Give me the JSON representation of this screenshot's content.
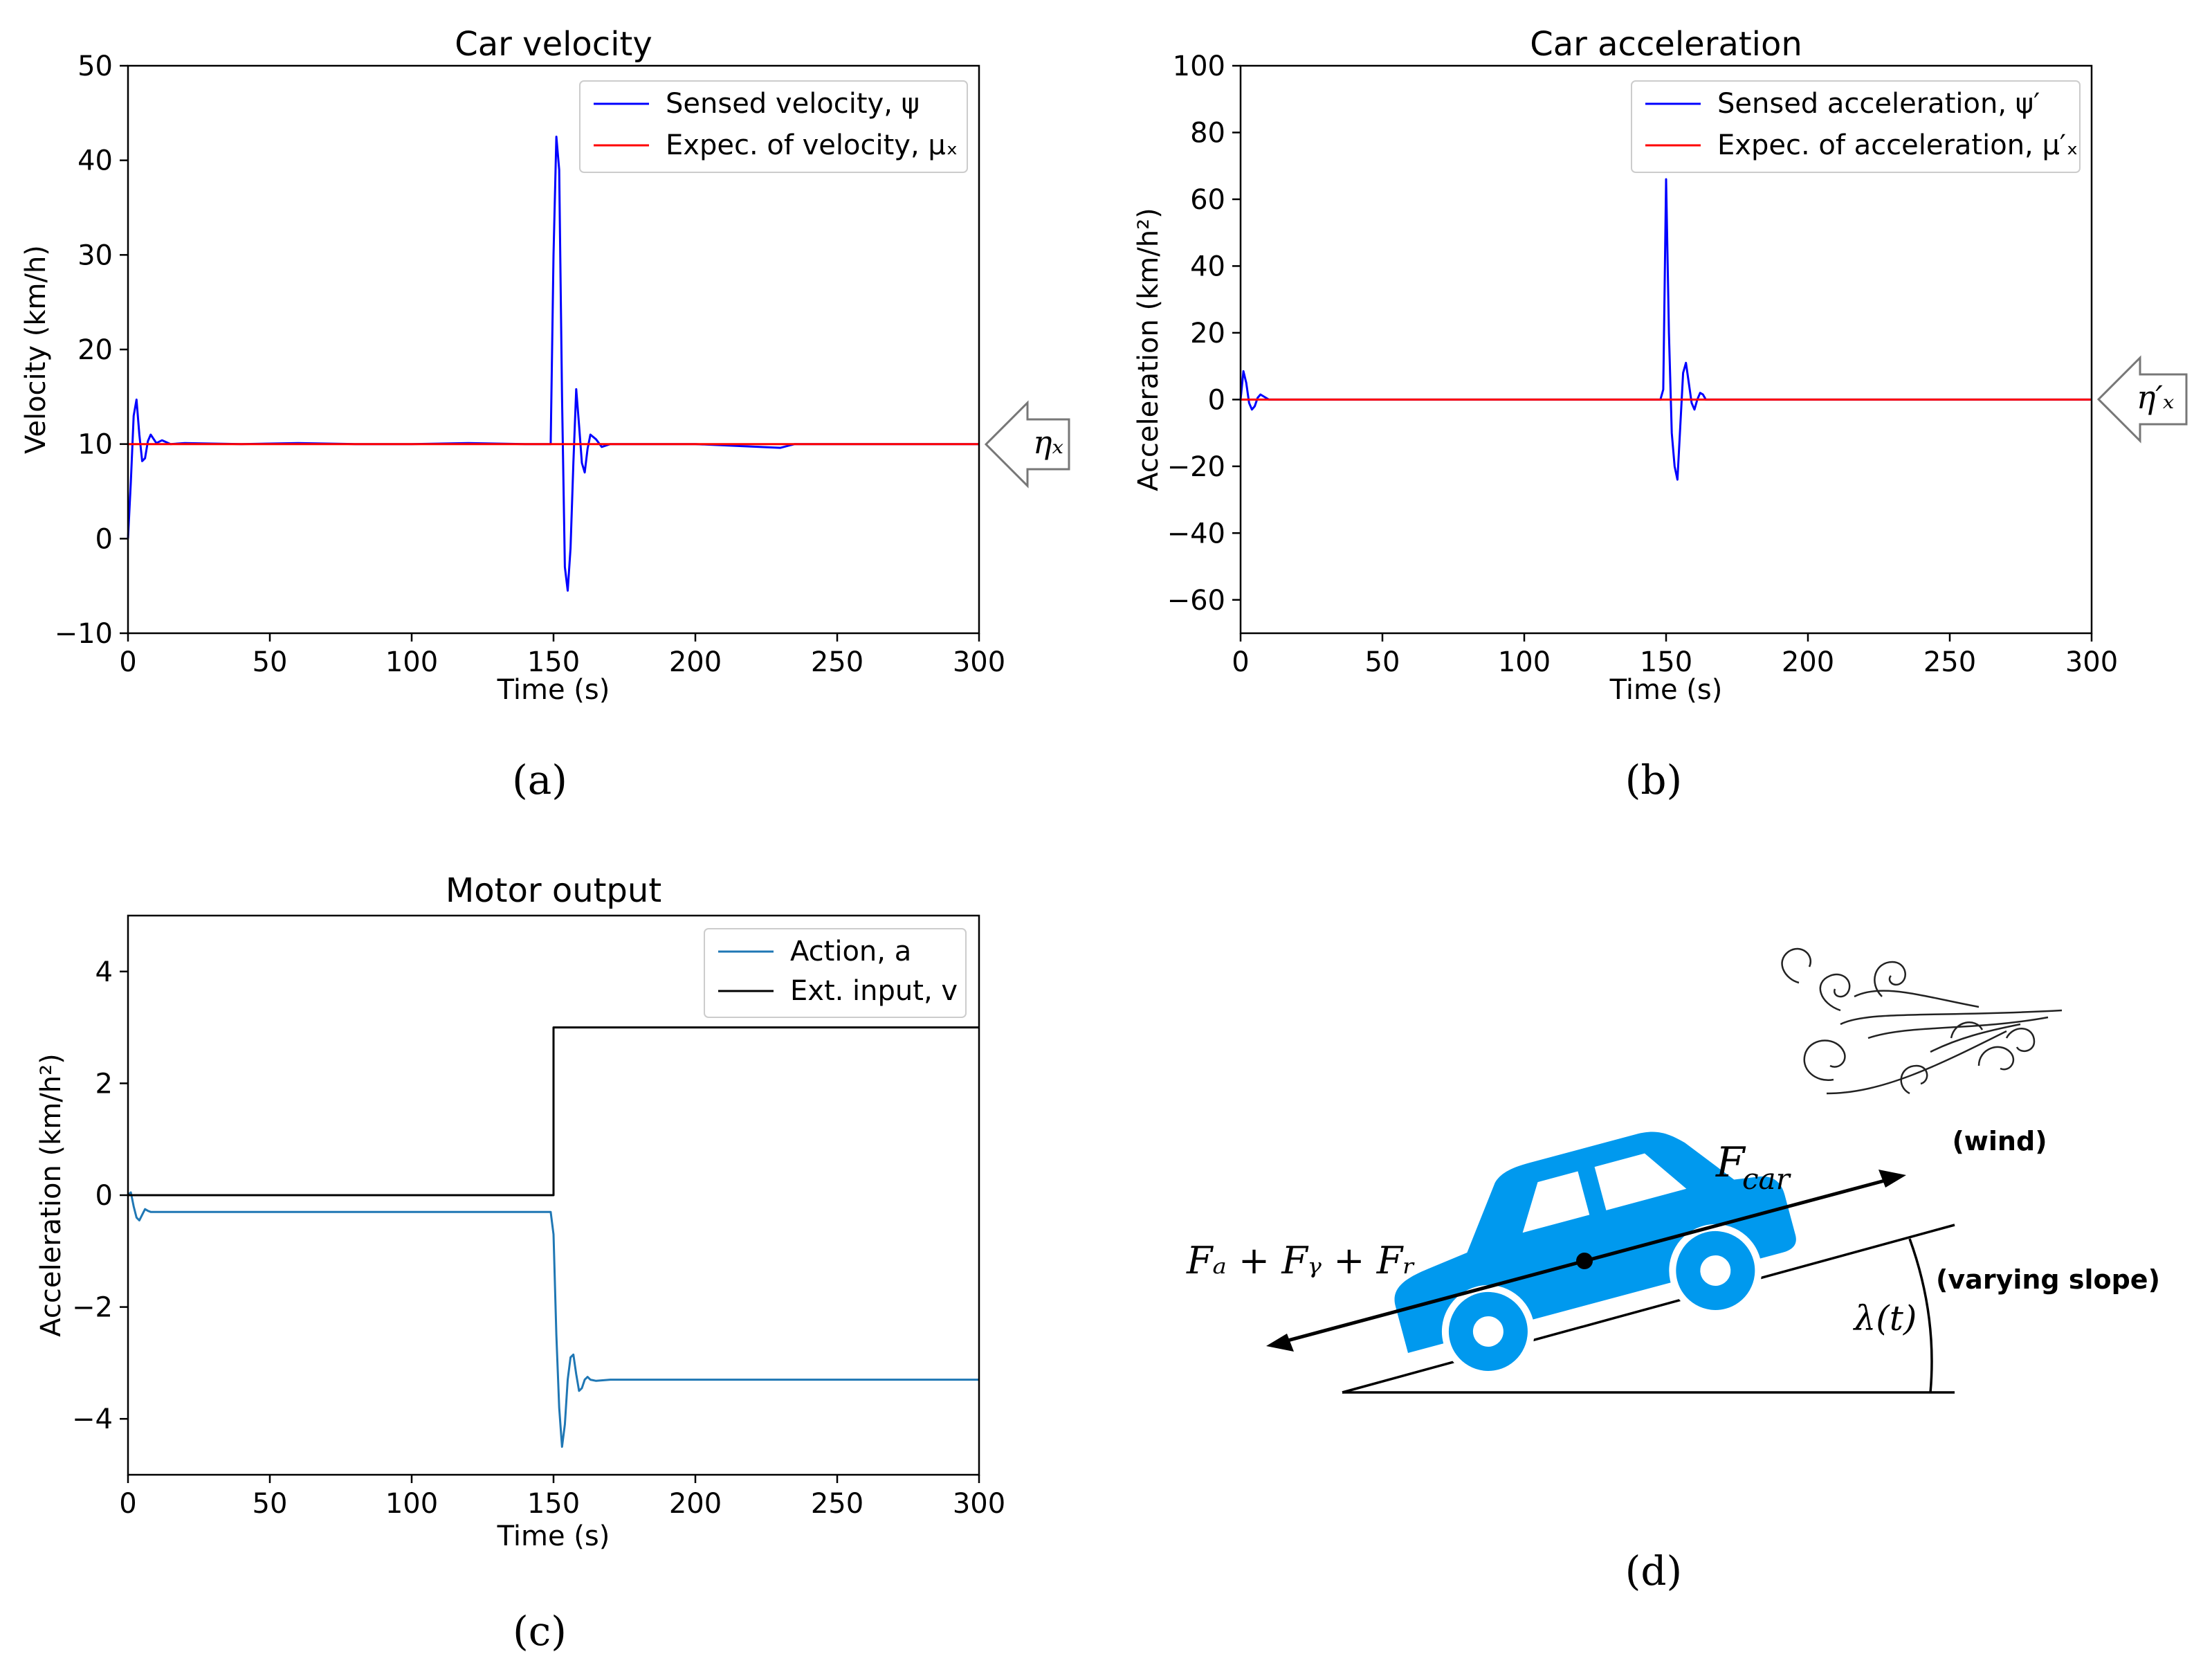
{
  "chart_data": [
    {
      "id": "a",
      "type": "line",
      "title": "Car velocity",
      "xlabel": "Time (s)",
      "ylabel": "Velocity (km/h)",
      "xlim": [
        0,
        300
      ],
      "ylim": [
        -10,
        50
      ],
      "xticks": [
        0,
        50,
        100,
        150,
        200,
        250,
        300
      ],
      "yticks": [
        -10,
        0,
        10,
        20,
        30,
        40,
        50
      ],
      "xtick_labels": [
        "0",
        "50",
        "100",
        "150",
        "200",
        "250",
        "300"
      ],
      "ytick_labels": [
        "−10",
        "0",
        "10",
        "20",
        "30",
        "40",
        "50"
      ],
      "legend": "top-right",
      "series": [
        {
          "name": "Sensed velocity, ψ",
          "color": "#0000ff",
          "x": [
            0,
            1,
            2,
            3,
            4,
            5,
            6,
            7,
            8,
            10,
            12,
            15,
            20,
            40,
            60,
            80,
            100,
            120,
            140,
            149,
            150,
            151,
            152,
            153,
            154,
            155,
            156,
            157,
            158,
            159,
            160,
            161,
            162,
            163,
            165,
            167,
            170,
            180,
            200,
            230,
            235,
            260,
            300
          ],
          "y": [
            0,
            6,
            13,
            14.7,
            11,
            8.2,
            8.5,
            10.3,
            11,
            10.1,
            10.4,
            10,
            10.1,
            10,
            10.1,
            10,
            10,
            10.1,
            10,
            10,
            30,
            42.5,
            39,
            15,
            -3,
            -5.5,
            -1,
            8,
            15.8,
            12,
            8,
            7,
            9.5,
            11,
            10.5,
            9.7,
            10,
            10,
            10,
            9.6,
            10,
            10,
            10
          ]
        },
        {
          "name": "Expec. of velocity, μₓ",
          "color": "#ff0000",
          "x": [
            0,
            300
          ],
          "y": [
            10,
            10
          ]
        }
      ],
      "annotation": "ηₓ"
    },
    {
      "id": "b",
      "type": "line",
      "title": "Car acceleration",
      "xlabel": "Time (s)",
      "ylabel": "Acceleration (km/h²)",
      "xlim": [
        0,
        300
      ],
      "ylim": [
        -70,
        100
      ],
      "xticks": [
        0,
        50,
        100,
        150,
        200,
        250,
        300
      ],
      "yticks": [
        -60,
        -40,
        -20,
        0,
        20,
        40,
        60,
        80,
        100
      ],
      "xtick_labels": [
        "0",
        "50",
        "100",
        "150",
        "200",
        "250",
        "300"
      ],
      "ytick_labels": [
        "−60",
        "−40",
        "−20",
        "0",
        "20",
        "40",
        "60",
        "80",
        "100"
      ],
      "legend": "top-right",
      "series": [
        {
          "name": "Sensed acceleration, ψ′",
          "color": "#0000ff",
          "x": [
            0,
            1,
            2,
            3,
            4,
            5,
            6,
            7,
            8,
            10,
            15,
            50,
            100,
            148,
            149,
            150,
            151,
            152,
            153,
            154,
            155,
            156,
            157,
            158,
            159,
            160,
            161,
            162,
            163,
            164,
            166,
            170,
            200,
            300
          ],
          "y": [
            0,
            8.5,
            5,
            -1,
            -3,
            -2,
            0.5,
            1.5,
            1,
            0,
            0,
            0,
            0,
            0,
            3,
            66,
            20,
            -10,
            -20,
            -24,
            -8,
            8,
            11,
            5,
            -1,
            -3,
            0,
            2,
            1.5,
            0,
            0,
            0,
            0,
            0
          ]
        },
        {
          "name": "Expec. of acceleration, μ′ₓ",
          "color": "#ff0000",
          "x": [
            0,
            300
          ],
          "y": [
            0,
            0
          ]
        }
      ],
      "annotation": "η′ₓ"
    },
    {
      "id": "c",
      "type": "line",
      "title": "Motor output",
      "xlabel": "Time (s)",
      "ylabel": "Acceleration (km/h²)",
      "xlim": [
        0,
        300
      ],
      "ylim": [
        -5,
        5
      ],
      "xticks": [
        0,
        50,
        100,
        150,
        200,
        250,
        300
      ],
      "yticks": [
        -4,
        -2,
        0,
        2,
        4
      ],
      "xtick_labels": [
        "0",
        "50",
        "100",
        "150",
        "200",
        "250",
        "300"
      ],
      "ytick_labels": [
        "−4",
        "−2",
        "0",
        "2",
        "4"
      ],
      "legend": "top-right",
      "series": [
        {
          "name": "Action, a",
          "color": "#1f77b4",
          "x": [
            0,
            1,
            2,
            3,
            4,
            5,
            6,
            7,
            8,
            10,
            15,
            50,
            100,
            149,
            150,
            151,
            152,
            153,
            154,
            155,
            156,
            157,
            158,
            159,
            160,
            161,
            162,
            163,
            165,
            170,
            200,
            300
          ],
          "y": [
            0,
            0.05,
            -0.2,
            -0.4,
            -0.45,
            -0.35,
            -0.25,
            -0.28,
            -0.3,
            -0.3,
            -0.3,
            -0.3,
            -0.3,
            -0.3,
            -0.7,
            -2.5,
            -3.8,
            -4.5,
            -4.1,
            -3.3,
            -2.9,
            -2.85,
            -3.2,
            -3.5,
            -3.45,
            -3.3,
            -3.25,
            -3.3,
            -3.32,
            -3.3,
            -3.3,
            -3.3
          ]
        },
        {
          "name": "Ext. input, v",
          "color": "#000000",
          "x": [
            0,
            150,
            150,
            300
          ],
          "y": [
            0,
            0,
            3,
            3
          ]
        }
      ]
    }
  ],
  "panels": {
    "a": "(a)",
    "b": "(b)",
    "c": "(c)",
    "d": "(d)"
  },
  "diagram": {
    "wind_label": "(wind)",
    "slope_label": "(varying slope)",
    "angle_label": "λ(t)",
    "car_force_label": "F",
    "car_force_sub": "car",
    "resist_force_label": "Fₐ + Fᵧ + Fᵣ",
    "car_color": "#0099ee"
  }
}
